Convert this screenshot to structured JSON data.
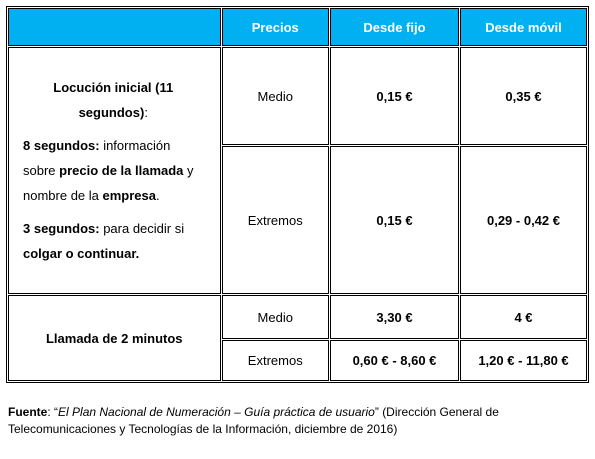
{
  "table": {
    "header": [
      "Precios",
      "Desde fijo",
      "Desde móvil"
    ],
    "groups": [
      {
        "label": [
          [
            {
              "text": "Locución inicial (11 segundos)",
              "bold": true
            },
            {
              "text": ":",
              "bold": false
            }
          ],
          [
            {
              "text": "8 segundos:",
              "bold": true
            },
            {
              "text": " información sobre ",
              "bold": false
            },
            {
              "text": "precio de la llamada",
              "bold": true
            },
            {
              "text": " y nombre de la ",
              "bold": false
            },
            {
              "text": "empresa",
              "bold": true
            },
            {
              "text": ".",
              "bold": false
            }
          ],
          [
            {
              "text": "3 segundos:",
              "bold": true
            },
            {
              "text": " para decidir si ",
              "bold": false
            },
            {
              "text": "colgar o continuar.",
              "bold": true
            }
          ]
        ],
        "rows": [
          [
            "Medio",
            "0,15 €",
            "0,35 €"
          ],
          [
            "Extremos",
            "0,15 €",
            "0,29 - 0,42 €"
          ]
        ]
      },
      {
        "label": [
          [
            {
              "text": "Llamada de 2 minutos",
              "bold": true
            }
          ]
        ],
        "rows": [
          [
            "Medio",
            "3,30 €",
            "4 €"
          ],
          [
            "Extremos",
            "0,60 € - 8,60 €",
            "1,20 € - 11,80 €"
          ]
        ]
      }
    ]
  },
  "footer": [
    {
      "text": "Fuente",
      "style": "bold"
    },
    {
      "text": ": “",
      "style": "normal"
    },
    {
      "text": "El Plan Nacional de Numeración – Guía práctica de usuario",
      "style": "italic"
    },
    {
      "text": "” (Dirección General de Telecomunicaciones y Tecnologías de la Información, diciembre de 2016)",
      "style": "normal"
    }
  ]
}
